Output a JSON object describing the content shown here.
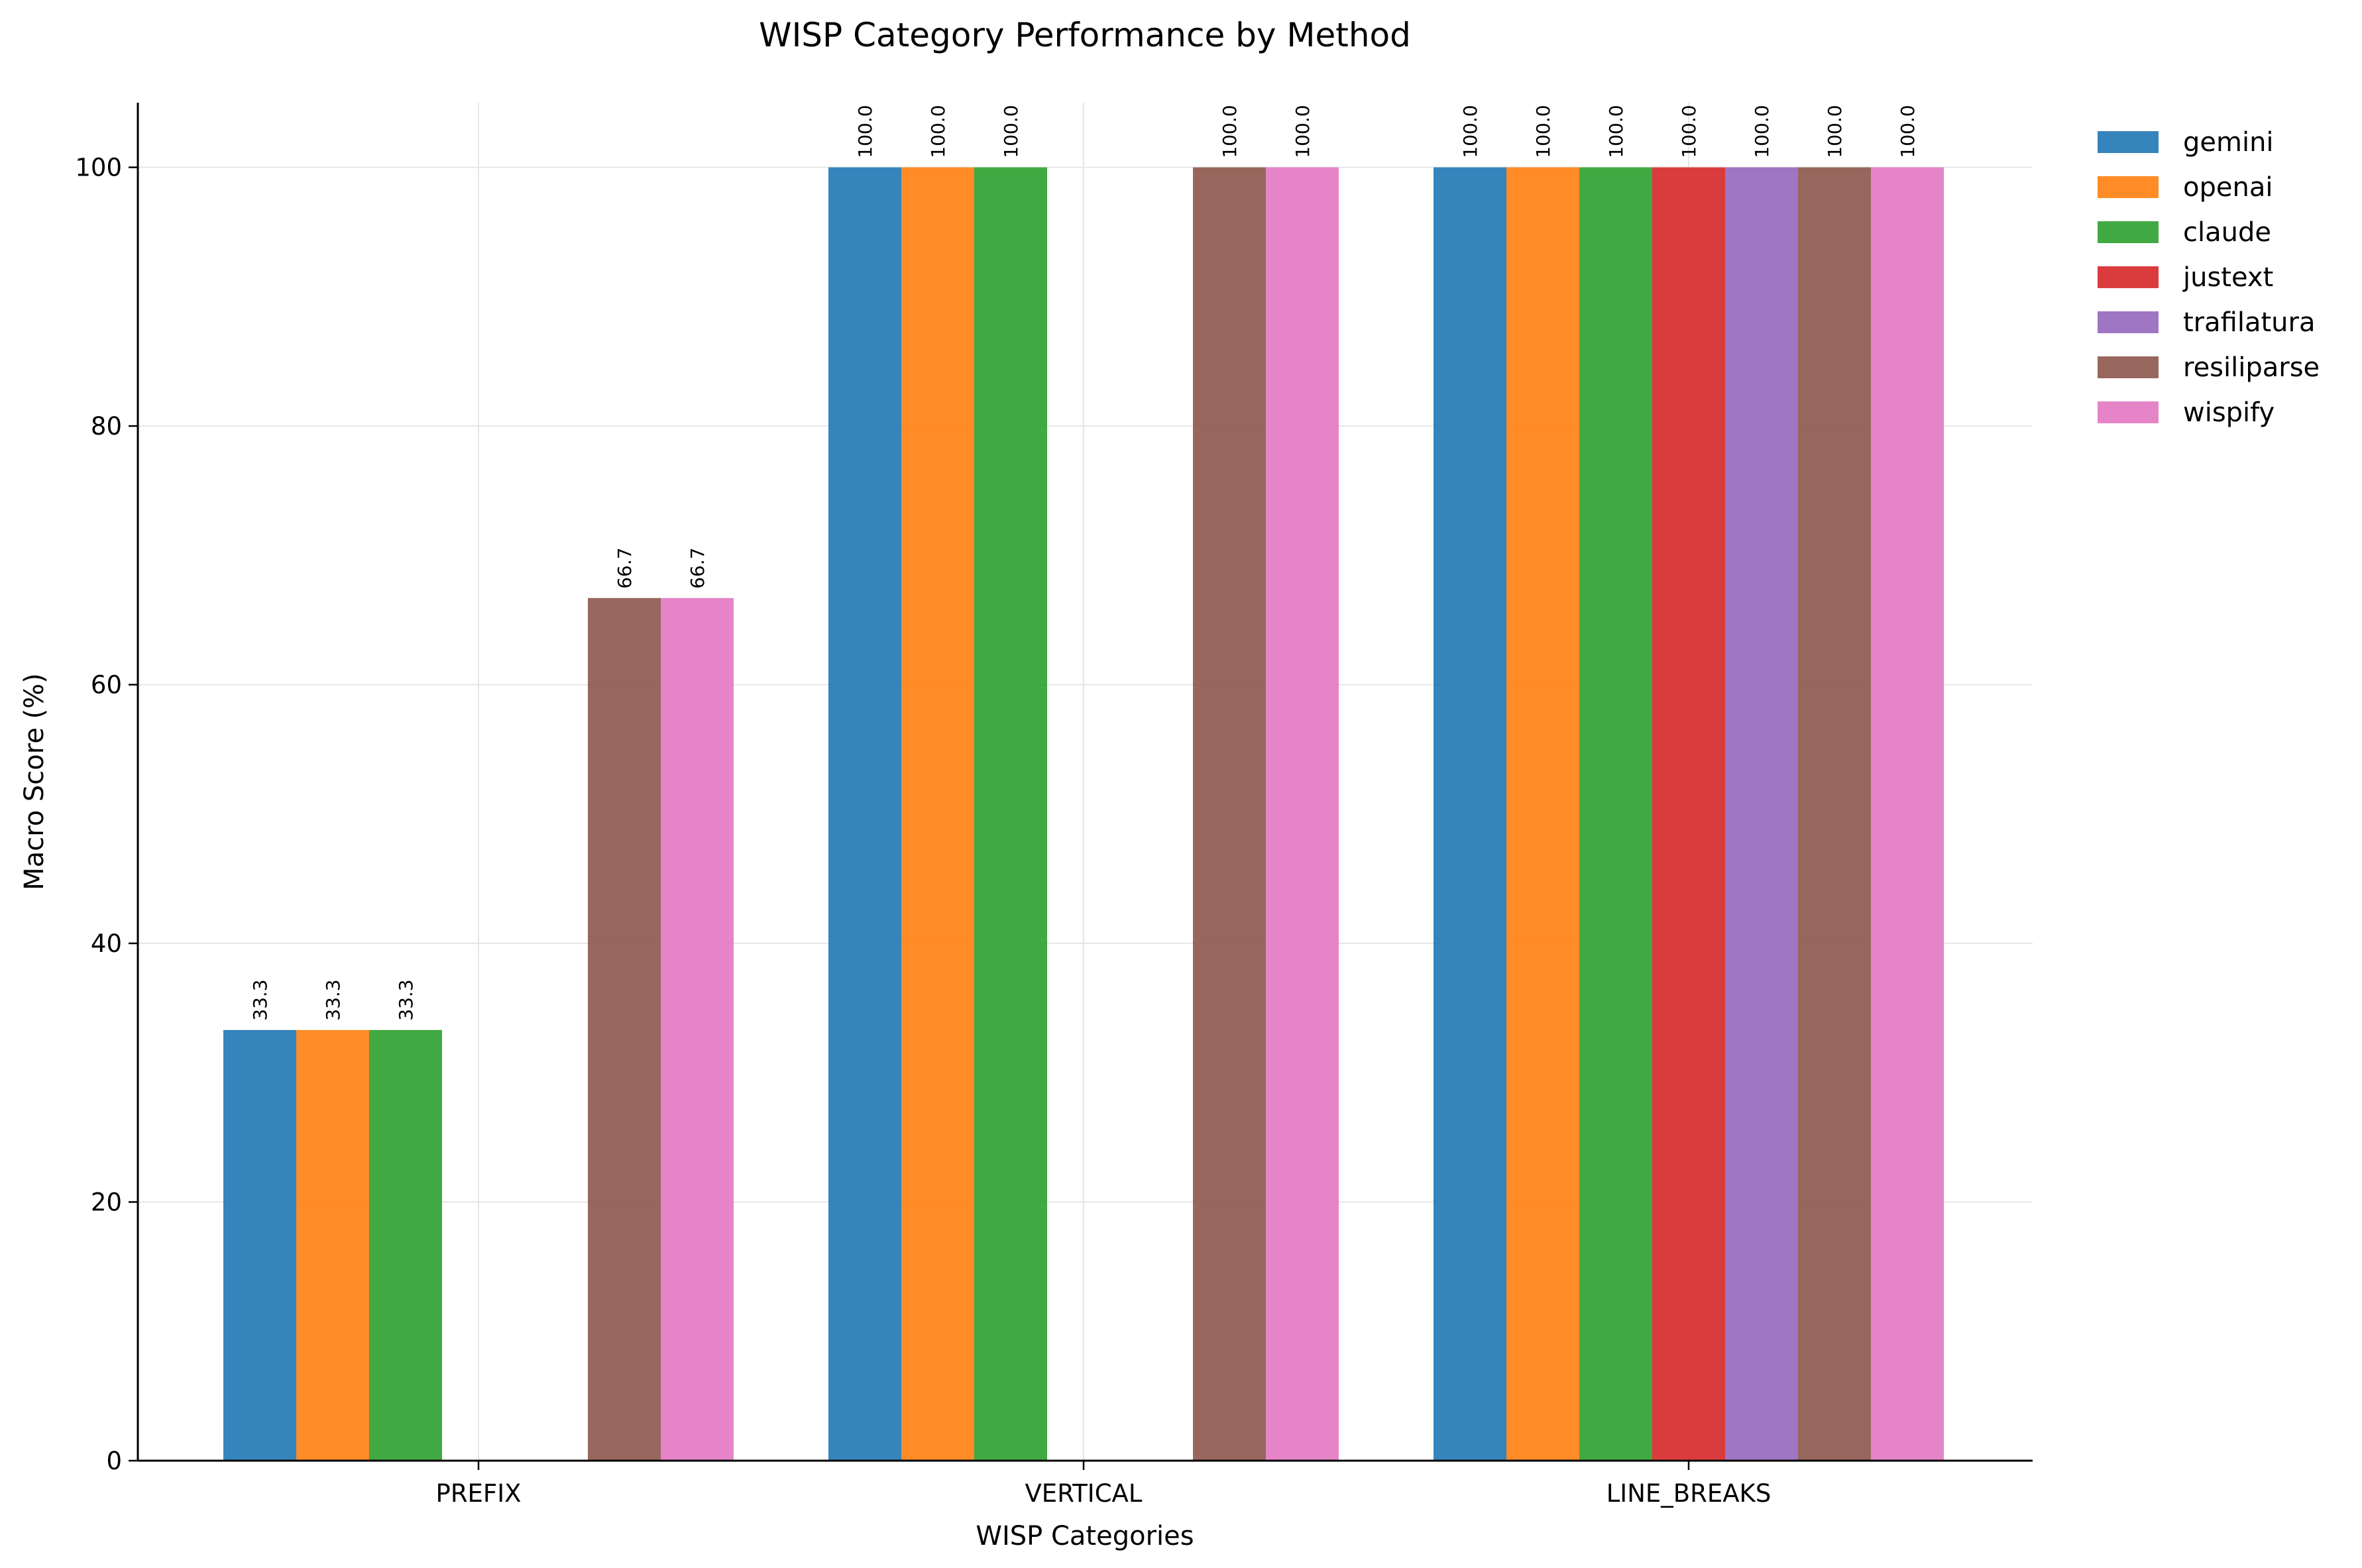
{
  "chart_data": {
    "type": "bar",
    "title": "WISP Category Performance by Method",
    "xlabel": "WISP Categories",
    "ylabel": "Macro Score (%)",
    "ylim": [
      0,
      105
    ],
    "yticks": [
      "0",
      "20",
      "40",
      "60",
      "80",
      "100"
    ],
    "grid": true,
    "legend_position": "outside-top-right",
    "categories": [
      "PREFIX",
      "VERTICAL",
      "LINE_BREAKS"
    ],
    "series": [
      {
        "name": "gemini",
        "color": "#1f77b4",
        "values": [
          33.3,
          100.0,
          100.0
        ],
        "labels": [
          "33.3",
          "100.0",
          "100.0"
        ]
      },
      {
        "name": "openai",
        "color": "#ff7f0e",
        "values": [
          33.3,
          100.0,
          100.0
        ],
        "labels": [
          "33.3",
          "100.0",
          "100.0"
        ]
      },
      {
        "name": "claude",
        "color": "#2ca02c",
        "values": [
          33.3,
          100.0,
          100.0
        ],
        "labels": [
          "33.3",
          "100.0",
          "100.0"
        ]
      },
      {
        "name": "justext",
        "color": "#d62728",
        "values": [
          0,
          0,
          100.0
        ],
        "labels": [
          "",
          "",
          "100.0"
        ]
      },
      {
        "name": "trafilatura",
        "color": "#9467bd",
        "values": [
          0,
          0,
          100.0
        ],
        "labels": [
          "",
          "",
          "100.0"
        ]
      },
      {
        "name": "resiliparse",
        "color": "#8c564b",
        "values": [
          66.7,
          100.0,
          100.0
        ],
        "labels": [
          "66.7",
          "100.0",
          "100.0"
        ]
      },
      {
        "name": "wispify",
        "color": "#e377c2",
        "values": [
          66.7,
          100.0,
          100.0
        ],
        "labels": [
          "66.7",
          "100.0",
          "100.0"
        ]
      }
    ]
  }
}
